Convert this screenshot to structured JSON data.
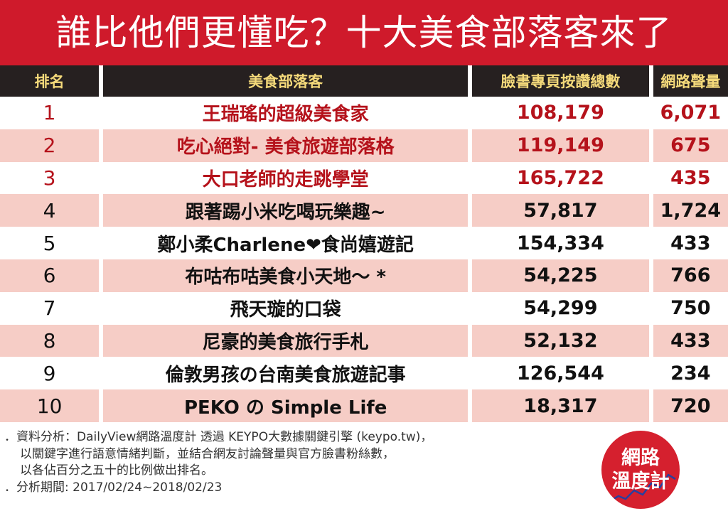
{
  "title": "誰比他們更懂吃？十大美食部落客來了",
  "headers": {
    "rank": "排名",
    "blogger": "美食部落客",
    "likes": "臉書專頁按讚總數",
    "volume": "網路聲量"
  },
  "rows": [
    {
      "rank": "1",
      "name": "王瑞瑤的超級美食家",
      "likes": "108,179",
      "volume": "6,071"
    },
    {
      "rank": "2",
      "name": "吃心絕對- 美食旅遊部落格",
      "likes": "119,149",
      "volume": "675"
    },
    {
      "rank": "3",
      "name": "大口老師的走跳學堂",
      "likes": "165,722",
      "volume": "435"
    },
    {
      "rank": "4",
      "name": "跟著踢小米吃喝玩樂趣~",
      "likes": "57,817",
      "volume": "1,724"
    },
    {
      "rank": "5",
      "name": "鄭小柔Charlene❤食尚嬉遊記",
      "likes": "154,334",
      "volume": "433"
    },
    {
      "rank": "6",
      "name": "布咕布咕美食小天地～ *",
      "likes": "54,225",
      "volume": "766"
    },
    {
      "rank": "7",
      "name": "飛天璇的口袋",
      "likes": "54,299",
      "volume": "750"
    },
    {
      "rank": "8",
      "name": "尼豪的美食旅行手札",
      "likes": "52,132",
      "volume": "433"
    },
    {
      "rank": "9",
      "name": "倫敦男孩の台南美食旅遊記事",
      "likes": "126,544",
      "volume": "234"
    },
    {
      "rank": "10",
      "name": "PEKO の Simple Life",
      "likes": "18,317",
      "volume": "720"
    }
  ],
  "notes": {
    "line1": "．資料分析：DailyView網路溫度計 透過 KEYPO大數據關鍵引擎 (keypo.tw)，",
    "line2": "以關鍵字進行語意情緒判斷，並結合網友討論聲量與官方臉書粉絲數，",
    "line3": "以各佔百分之五十的比例做出排名。",
    "line4": "．分析期間: 2017/02/24~2018/02/23"
  },
  "logo": {
    "line1": "網路",
    "line2": "溫度計"
  },
  "colors": {
    "title_bg": "#cf1a2b",
    "header_bg": "#262020",
    "header_text": "#f4d97a",
    "row_alt": "#f6cdc6",
    "top3_text": "#b5121b"
  }
}
